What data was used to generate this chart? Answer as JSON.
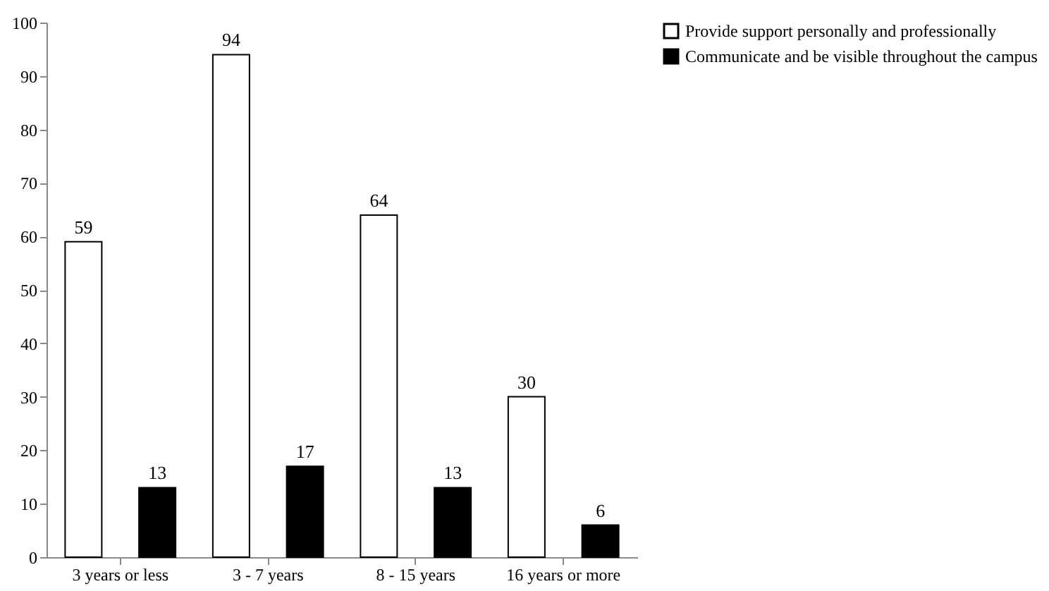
{
  "chart_data": {
    "type": "bar",
    "categories": [
      "3 years or less",
      "3 - 7 years",
      "8 - 15 years",
      "16 years or more"
    ],
    "series": [
      {
        "name": "Provide support personally and professionally",
        "color": "#ffffff",
        "values": [
          59,
          94,
          64,
          30
        ]
      },
      {
        "name": "Communicate and be visible throughout the campus",
        "color": "#000000",
        "values": [
          13,
          17,
          13,
          6
        ]
      }
    ],
    "ylim": [
      0,
      100
    ],
    "yticks": [
      0,
      10,
      20,
      30,
      40,
      50,
      60,
      70,
      80,
      90,
      100
    ],
    "grid": false,
    "legend": "right",
    "data_labels": true
  }
}
